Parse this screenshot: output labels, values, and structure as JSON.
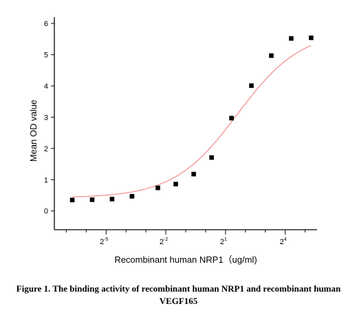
{
  "chart_data": {
    "type": "scatter",
    "xlabel": "Recombinant human NRP1（ug/ml)",
    "ylabel": "Mean OD value",
    "x_scale": "log2",
    "xlim": [
      -7.6,
      5.6
    ],
    "ylim": [
      -0.6,
      6.2
    ],
    "x_tick_labels": [
      {
        "base": "2",
        "exp": "-5"
      },
      {
        "base": "2",
        "exp": "-2"
      },
      {
        "base": "2",
        "exp": "1"
      },
      {
        "base": "2",
        "exp": "4"
      }
    ],
    "x_major_ticks_exp": [
      -5,
      -2,
      1,
      4
    ],
    "x_minor_ticks_exp": [
      -7,
      -6,
      -4,
      -3,
      -1,
      0,
      2,
      3,
      5
    ],
    "y_ticks": [
      0,
      1,
      2,
      3,
      4,
      5,
      6
    ],
    "grid": false,
    "legend": "none",
    "series": [
      {
        "marker": "square",
        "x_log2": [
          -6.7,
          -5.7,
          -4.7,
          -3.7,
          -2.4,
          -1.5,
          -0.6,
          0.3,
          1.3,
          2.3,
          3.3,
          4.3,
          5.3
        ],
        "y": [
          0.35,
          0.36,
          0.38,
          0.47,
          0.74,
          0.86,
          1.18,
          1.71,
          2.97,
          4.01,
          4.97,
          5.52,
          5.54
        ]
      }
    ],
    "fit": {
      "type": "4PL",
      "bottom": 0.42,
      "top": 5.78,
      "ec50_log2": 1.6,
      "slope": 0.9,
      "color": "#f28b8b"
    },
    "marker_color": "#000000",
    "axis_color": "#000000"
  },
  "caption": {
    "line1": "Figure 1. The binding activity of recombinant human NRP1 and recombinant human",
    "line2": "VEGF165"
  }
}
